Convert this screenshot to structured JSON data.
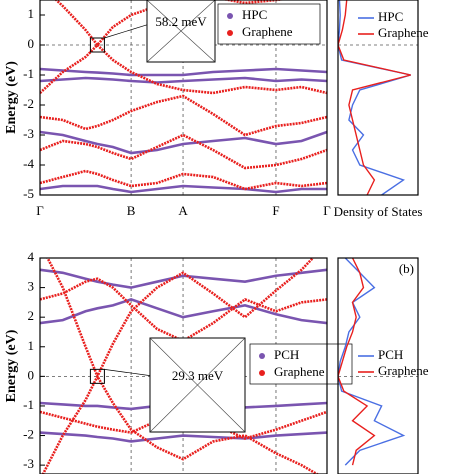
{
  "chart_data": [
    {
      "type": "band",
      "ylabel": "Energy (eV)",
      "ylim": [
        -5,
        1.5
      ],
      "yticks": [
        -5,
        -4,
        -3,
        -2,
        -1,
        0,
        1
      ],
      "xlim": [
        0,
        3.15
      ],
      "xticks": [
        {
          "value": 0,
          "label": "Γ"
        },
        {
          "value": 1,
          "label": "B"
        },
        {
          "value": 1.57,
          "label": "A"
        },
        {
          "value": 2.59,
          "label": "F"
        },
        {
          "value": 3.15,
          "label": "Γ"
        }
      ],
      "fermi_level": 0,
      "inset_label": "58.2 meV",
      "x": [
        0,
        0.25,
        0.5,
        0.63,
        0.8,
        1,
        1.285,
        1.57,
        1.9,
        2.25,
        2.59,
        2.87,
        3.15
      ],
      "series": [
        {
          "name": "HPC",
          "color": "#7a55b0",
          "bands": [
            [
              -0.8,
              -0.85,
              -0.9,
              -0.92,
              -0.95,
              -1.0,
              -1.0,
              -1.0,
              -0.9,
              -0.85,
              -0.8,
              -0.85,
              -0.9
            ],
            [
              -1.2,
              -1.15,
              -1.1,
              -1.12,
              -1.15,
              -1.2,
              -1.25,
              -1.2,
              -1.15,
              -1.1,
              -1.2,
              -1.15,
              -1.2
            ],
            [
              -2.9,
              -3.0,
              -3.2,
              -3.3,
              -3.4,
              -3.6,
              -3.5,
              -3.3,
              -3.2,
              -3.1,
              -3.3,
              -3.2,
              -2.9
            ],
            [
              -4.8,
              -4.7,
              -4.7,
              -4.7,
              -4.8,
              -4.9,
              -4.8,
              -4.7,
              -4.75,
              -4.8,
              -4.9,
              -4.8,
              -4.8
            ]
          ]
        },
        {
          "name": "Graphene",
          "color": "#e8201e",
          "bands": [
            [
              2.0,
              1.3,
              0.5,
              0,
              0.6,
              1.0,
              1.3,
              1.5,
              1.6,
              1.4,
              1.5,
              1.6,
              2.0
            ],
            [
              -1.6,
              -0.9,
              -0.4,
              0,
              -0.5,
              -0.9,
              -1.3,
              -1.5,
              -1.6,
              -1.4,
              -1.5,
              -1.4,
              -1.6
            ],
            [
              -2.4,
              -2.5,
              -2.8,
              -2.7,
              -2.5,
              -2.2,
              -1.9,
              -1.7,
              -2.3,
              -3.0,
              -2.7,
              -2.6,
              -2.4
            ],
            [
              -3.5,
              -3.2,
              -3.3,
              -3.4,
              -3.6,
              -3.8,
              -3.4,
              -3.0,
              -3.5,
              -4.1,
              -4.0,
              -3.8,
              -3.5
            ],
            [
              -4.6,
              -4.4,
              -4.2,
              -4.3,
              -4.5,
              -4.7,
              -4.6,
              -4.3,
              -4.4,
              -4.8,
              -4.6,
              -4.7,
              -4.6
            ]
          ]
        }
      ]
    },
    {
      "type": "dos",
      "xlabel": "Density of States",
      "ylim": [
        -5,
        1.5
      ],
      "xlim": [
        0,
        1.1
      ],
      "fermi_level": 0,
      "y": [
        -5,
        -4.5,
        -4,
        -3.5,
        -3,
        -2.5,
        -2,
        -1.5,
        -1,
        -0.5,
        0,
        0.5,
        1,
        1.5
      ],
      "series": [
        {
          "name": "HPC",
          "color": "#4a6fe3",
          "values": [
            0.6,
            0.9,
            0.3,
            0.2,
            0.35,
            0.15,
            0.2,
            0.3,
            1.0,
            0.05,
            0,
            0.02,
            0.03,
            0.02
          ]
        },
        {
          "name": "Graphene",
          "color": "#e8201e",
          "values": [
            0.4,
            0.5,
            0.35,
            0.3,
            0.25,
            0.2,
            0.15,
            0.2,
            1.0,
            0.08,
            0,
            0.06,
            0.1,
            0.12
          ]
        }
      ]
    },
    {
      "type": "band",
      "ylabel": "Energy (eV)",
      "ylim": [
        -3.3,
        4
      ],
      "yticks": [
        -3,
        -2,
        -1,
        0,
        1,
        2,
        3,
        4
      ],
      "xlim": [
        0,
        3.15
      ],
      "xticks": [
        {
          "value": 0,
          "label": ""
        },
        {
          "value": 1,
          "label": ""
        },
        {
          "value": 1.57,
          "label": ""
        },
        {
          "value": 2.59,
          "label": ""
        },
        {
          "value": 3.15,
          "label": ""
        }
      ],
      "fermi_level": 0,
      "inset_label": "29.3 meV",
      "x": [
        0,
        0.25,
        0.5,
        0.63,
        0.8,
        1,
        1.285,
        1.57,
        1.9,
        2.25,
        2.59,
        2.87,
        3.15
      ],
      "series": [
        {
          "name": "PCH",
          "color": "#7a55b0",
          "bands": [
            [
              -0.9,
              -0.95,
              -1.0,
              -1.0,
              -1.05,
              -1.1,
              -1.0,
              -0.95,
              -1.0,
              -1.05,
              -1.0,
              -0.95,
              -0.9
            ],
            [
              -1.9,
              -1.95,
              -2.0,
              -2.05,
              -2.1,
              -2.2,
              -2.1,
              -2.0,
              -2.05,
              -2.1,
              -2.0,
              -1.95,
              -1.9
            ],
            [
              3.6,
              3.5,
              3.3,
              3.2,
              3.1,
              3.0,
              3.2,
              3.4,
              3.3,
              3.2,
              3.4,
              3.5,
              3.6
            ],
            [
              1.8,
              1.9,
              2.2,
              2.3,
              2.4,
              2.6,
              2.3,
              2.0,
              2.2,
              2.4,
              2.1,
              1.9,
              1.8
            ]
          ]
        },
        {
          "name": "Graphene",
          "color": "#e8201e",
          "bands": [
            [
              4.5,
              3.0,
              1.0,
              0,
              1.1,
              2.2,
              3.0,
              3.5,
              2.8,
              2.0,
              2.9,
              3.6,
              4.5
            ],
            [
              -3.5,
              -2.0,
              -0.8,
              0,
              -0.9,
              -1.8,
              -2.4,
              -2.8,
              -2.2,
              -2.0,
              -2.6,
              -3.0,
              -3.5
            ],
            [
              2.6,
              2.8,
              3.2,
              3.3,
              3.0,
              2.4,
              1.6,
              1.2,
              1.8,
              2.6,
              2.2,
              2.5,
              2.6
            ],
            [
              -1.2,
              -1.4,
              -1.6,
              -1.7,
              -1.8,
              -1.9,
              -1.5,
              -1.2,
              -1.6,
              -2.1,
              -1.8,
              -1.5,
              -1.2
            ]
          ]
        }
      ]
    },
    {
      "type": "dos",
      "panel_label": "(b)",
      "ylim": [
        -3.3,
        4
      ],
      "xlim": [
        0,
        1.1
      ],
      "fermi_level": 0,
      "y": [
        -3,
        -2.5,
        -2,
        -1.5,
        -1,
        -0.5,
        0,
        0.5,
        1,
        1.5,
        2,
        2.5,
        3,
        3.5,
        4
      ],
      "series": [
        {
          "name": "PCH",
          "color": "#4a6fe3",
          "values": [
            0.1,
            0.3,
            0.9,
            0.5,
            0.6,
            0.05,
            0,
            0.03,
            0.1,
            0.15,
            0.3,
            0.2,
            0.5,
            0.3,
            0.1
          ]
        },
        {
          "name": "Graphene",
          "color": "#e8201e",
          "values": [
            0.2,
            0.25,
            0.5,
            0.2,
            0.4,
            0.08,
            0,
            0.06,
            0.12,
            0.2,
            0.25,
            0.2,
            0.35,
            0.3,
            0.2
          ]
        }
      ]
    }
  ]
}
